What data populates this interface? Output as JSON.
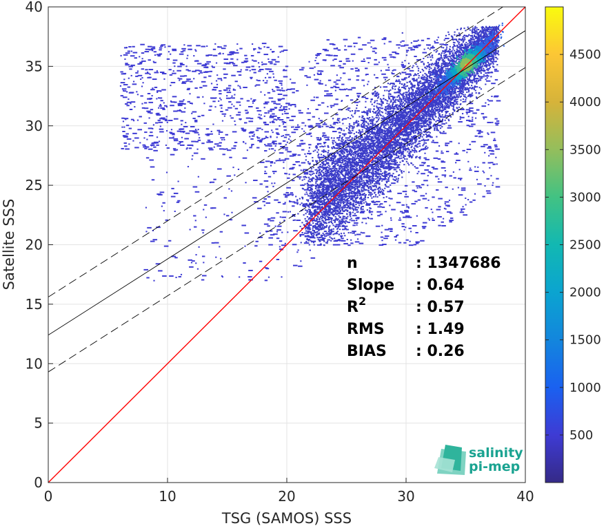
{
  "chart_data": {
    "type": "heatmap",
    "xlabel": "TSG (SAMOS) SSS",
    "ylabel": "Satellite SSS",
    "xlim": [
      0,
      40
    ],
    "ylim": [
      0,
      40
    ],
    "xticks": [
      0,
      10,
      20,
      30,
      40
    ],
    "yticks": [
      0,
      5,
      10,
      15,
      20,
      25,
      30,
      35,
      40
    ],
    "grid": true,
    "colorbar": {
      "range": [
        0,
        5000
      ],
      "ticks": [
        500,
        1000,
        1500,
        2000,
        2500,
        3000,
        3500,
        4000,
        4500
      ],
      "colormap": "parula"
    },
    "density_core": {
      "x": 35,
      "y": 35.2,
      "peak_count": 4800
    },
    "lines": [
      {
        "kind": "one-to-one",
        "color": "#ff0000",
        "style": "solid",
        "slope": 1,
        "intercept": 0
      },
      {
        "kind": "regression",
        "color": "#000000",
        "style": "solid",
        "slope": 0.64,
        "intercept": 12.4
      },
      {
        "kind": "upper-bound",
        "color": "#000000",
        "style": "dashed",
        "slope": 0.64,
        "intercept": 15.6
      },
      {
        "kind": "lower-bound",
        "color": "#000000",
        "style": "dashed",
        "slope": 0.64,
        "intercept": 9.3
      }
    ],
    "stats": [
      {
        "label": "n",
        "sup": "",
        "value": ": 1347686"
      },
      {
        "label": "Slope",
        "sup": "",
        "value": ": 0.64"
      },
      {
        "label": "R",
        "sup": "2",
        "value": ": 0.57"
      },
      {
        "label": "RMS",
        "sup": "",
        "value": ": 1.49"
      },
      {
        "label": "BIAS",
        "sup": "",
        "value": ": 0.26"
      }
    ]
  },
  "logo": {
    "line1": "salinity",
    "line2": "pi-mep"
  }
}
